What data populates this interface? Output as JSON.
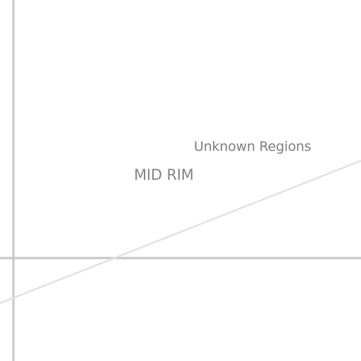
{
  "map": {
    "labels": {
      "region": "Unknown Regions",
      "zone": "MID RIM"
    },
    "colors": {
      "background": "#ffffff",
      "grid_line": "#c6c6c6",
      "route_line": "#e2e2e2",
      "label_text": "#7d7d7d"
    }
  }
}
